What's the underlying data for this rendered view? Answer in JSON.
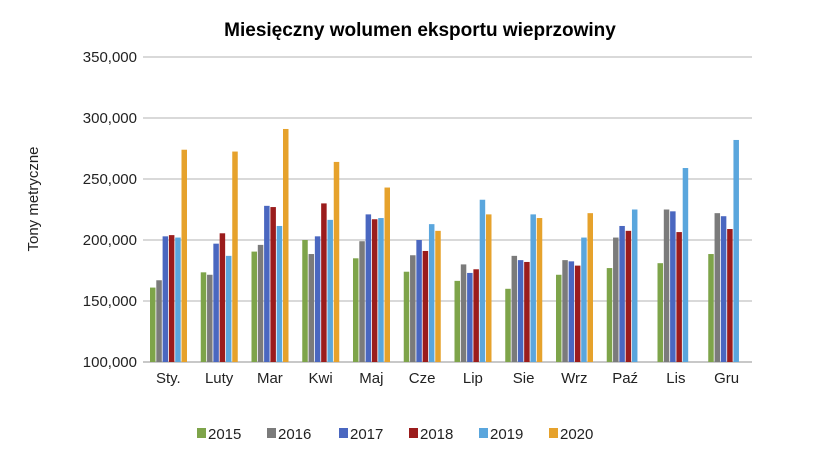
{
  "chart_data": {
    "type": "bar",
    "title": "Miesięczny wolumen eksportu wieprzowiny",
    "xlabel": "",
    "ylabel": "Tony metryczne",
    "ylim": [
      100000,
      350000
    ],
    "yticks": [
      "100,000",
      "150,000",
      "200,000",
      "250,000",
      "300,000",
      "350,000"
    ],
    "grid": true,
    "legend_position": "bottom",
    "categories": [
      "Sty.",
      "Luty",
      "Mar",
      "Kwi",
      "Maj",
      "Cze",
      "Lip",
      "Sie",
      "Wrz",
      "Paź",
      "Lis",
      "Gru"
    ],
    "series": [
      {
        "name": "2015",
        "color": "#7ea44a",
        "values": [
          161000,
          173500,
          190500,
          200000,
          185000,
          174000,
          166500,
          160000,
          171500,
          177000,
          181000,
          188500
        ]
      },
      {
        "name": "2016",
        "color": "#7b7b7b",
        "values": [
          167000,
          171500,
          196000,
          188500,
          199000,
          187500,
          180000,
          187000,
          183500,
          202000,
          225000,
          222000
        ]
      },
      {
        "name": "2017",
        "color": "#4a67c0",
        "values": [
          203000,
          197000,
          228000,
          203000,
          221000,
          200000,
          173000,
          183500,
          182500,
          211500,
          223500,
          219500
        ]
      },
      {
        "name": "2018",
        "color": "#9b1c1c",
        "values": [
          204000,
          205500,
          227000,
          230000,
          217000,
          191000,
          176000,
          182000,
          179000,
          207500,
          206500,
          209000
        ]
      },
      {
        "name": "2019",
        "color": "#5aa6dd",
        "values": [
          202000,
          187000,
          211500,
          216500,
          218000,
          213000,
          233000,
          221000,
          202000,
          225000,
          259000,
          282000
        ]
      },
      {
        "name": "2020",
        "color": "#e6a22c",
        "values": [
          274000,
          272500,
          291000,
          264000,
          243000,
          207500,
          221000,
          218000,
          222000,
          null,
          null,
          null
        ]
      }
    ]
  }
}
